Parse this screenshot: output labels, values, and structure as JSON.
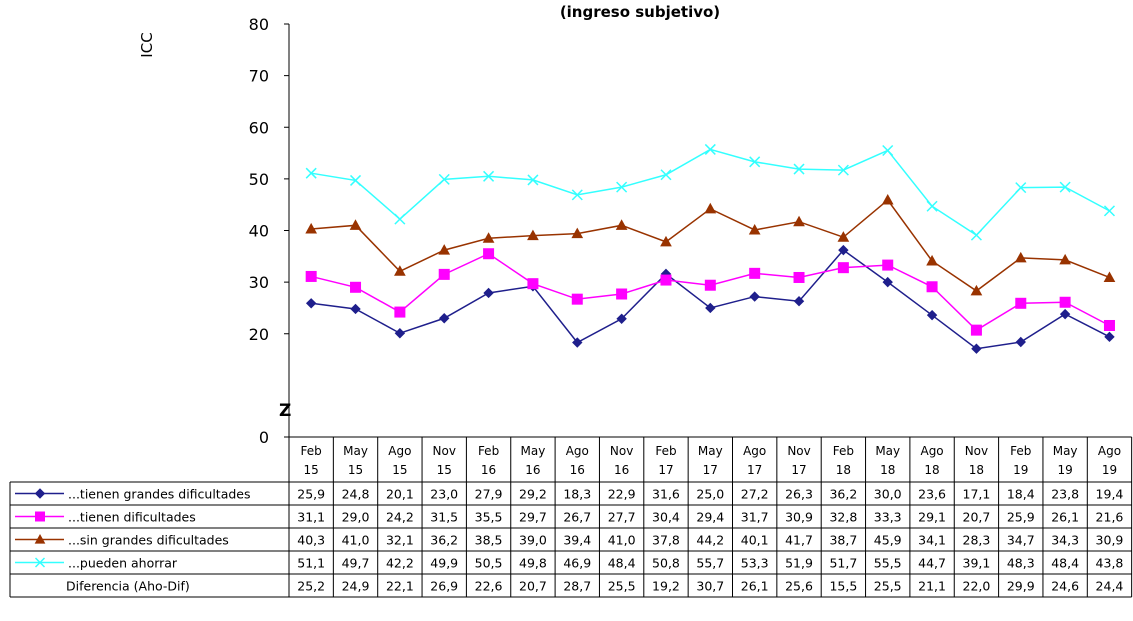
{
  "chart_data": {
    "type": "line",
    "title": "(ingreso subjetivo)",
    "ylabel": "ICC",
    "ylim": [
      0,
      80
    ],
    "yticks": [
      0,
      20,
      30,
      40,
      50,
      60,
      70,
      80
    ],
    "axis_break_mark": "Z",
    "grid": false,
    "legend": "data-table-below",
    "categories": [
      [
        "Feb",
        "15"
      ],
      [
        "May",
        "15"
      ],
      [
        "Ago",
        "15"
      ],
      [
        "Nov",
        "15"
      ],
      [
        "Feb",
        "16"
      ],
      [
        "May",
        "16"
      ],
      [
        "Ago",
        "16"
      ],
      [
        "Nov",
        "16"
      ],
      [
        "Feb",
        "17"
      ],
      [
        "May",
        "17"
      ],
      [
        "Ago",
        "17"
      ],
      [
        "Nov",
        "17"
      ],
      [
        "Feb",
        "18"
      ],
      [
        "May",
        "18"
      ],
      [
        "Ago",
        "18"
      ],
      [
        "Nov",
        "18"
      ],
      [
        "Feb",
        "19"
      ],
      [
        "May",
        "19"
      ],
      [
        "Ago",
        "19"
      ]
    ],
    "series": [
      {
        "name": "...tienen grandes dificultades",
        "color": "#1f1f8c",
        "marker": "diamond",
        "values": [
          25.9,
          24.8,
          20.1,
          23.0,
          27.9,
          29.2,
          18.3,
          22.9,
          31.6,
          25.0,
          27.2,
          26.3,
          36.2,
          30.0,
          23.6,
          17.1,
          18.4,
          23.8,
          19.4
        ]
      },
      {
        "name": "...tienen dificultades",
        "color": "#ff00ff",
        "marker": "square",
        "values": [
          31.1,
          29.0,
          24.2,
          31.5,
          35.5,
          29.7,
          26.7,
          27.7,
          30.4,
          29.4,
          31.7,
          30.9,
          32.8,
          33.3,
          29.1,
          20.7,
          25.9,
          26.1,
          21.6
        ]
      },
      {
        "name": "...sin grandes dificultades",
        "color": "#993300",
        "marker": "triangle",
        "values": [
          40.3,
          41.0,
          32.1,
          36.2,
          38.5,
          39.0,
          39.4,
          41.0,
          37.8,
          44.2,
          40.1,
          41.7,
          38.7,
          45.9,
          34.1,
          28.3,
          34.7,
          34.3,
          30.9
        ]
      },
      {
        "name": "...pueden ahorrar",
        "color": "#33ffff",
        "marker": "x",
        "values": [
          51.1,
          49.7,
          42.2,
          49.9,
          50.5,
          49.8,
          46.9,
          48.4,
          50.8,
          55.7,
          53.3,
          51.9,
          51.7,
          55.5,
          44.7,
          39.1,
          48.3,
          48.4,
          43.8
        ]
      }
    ],
    "table_extra_rows": [
      {
        "name": "Diferencia (Aho-Dif)",
        "values": [
          25.2,
          24.9,
          22.1,
          26.9,
          22.6,
          20.7,
          28.7,
          25.5,
          19.2,
          30.7,
          26.1,
          25.6,
          15.5,
          25.5,
          21.1,
          22.0,
          29.9,
          24.6,
          24.4
        ]
      }
    ]
  }
}
